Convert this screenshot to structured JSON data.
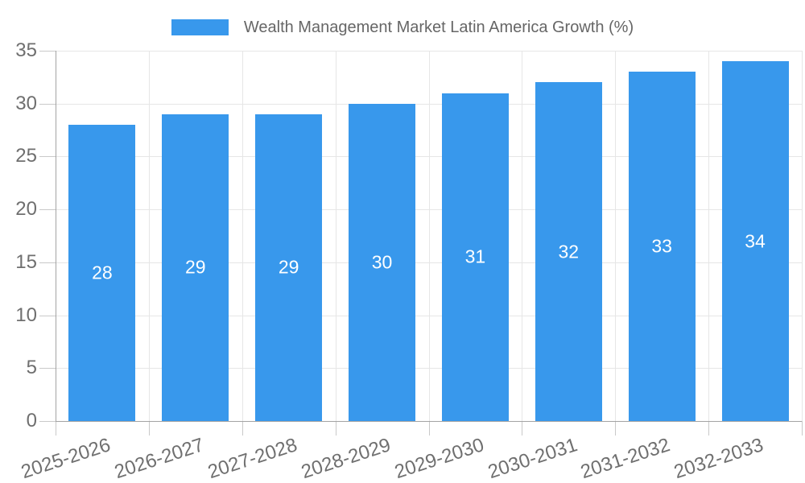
{
  "chart_data": {
    "type": "bar",
    "legend_label": "Wealth Management Market Latin America Growth (%)",
    "legend_position": "top",
    "categories": [
      "2025-2026",
      "2026-2027",
      "2027-2028",
      "2028-2029",
      "2029-2030",
      "2030-2031",
      "2031-2032",
      "2032-2033"
    ],
    "series": [
      {
        "name": "Wealth Management Market Latin America Growth (%)",
        "values": [
          28,
          29,
          29,
          30,
          31,
          32,
          33,
          34
        ]
      }
    ],
    "values": [
      28,
      29,
      29,
      30,
      31,
      32,
      33,
      34
    ],
    "ylim": [
      0,
      35
    ],
    "yticks": [
      0,
      5,
      10,
      15,
      20,
      25,
      30,
      35
    ],
    "grid": true,
    "xlabel": "",
    "ylabel": "",
    "colors": {
      "bar": "#3898EC",
      "bar_label": "#FFFFFF",
      "tick_text": "#6F6F6F",
      "legend_text": "#666666",
      "grid_line": "#E6E6E6",
      "axis_line": "#A3A3A3",
      "tick_mark": "#C9C9C9",
      "background": "#FFFFFF"
    }
  }
}
